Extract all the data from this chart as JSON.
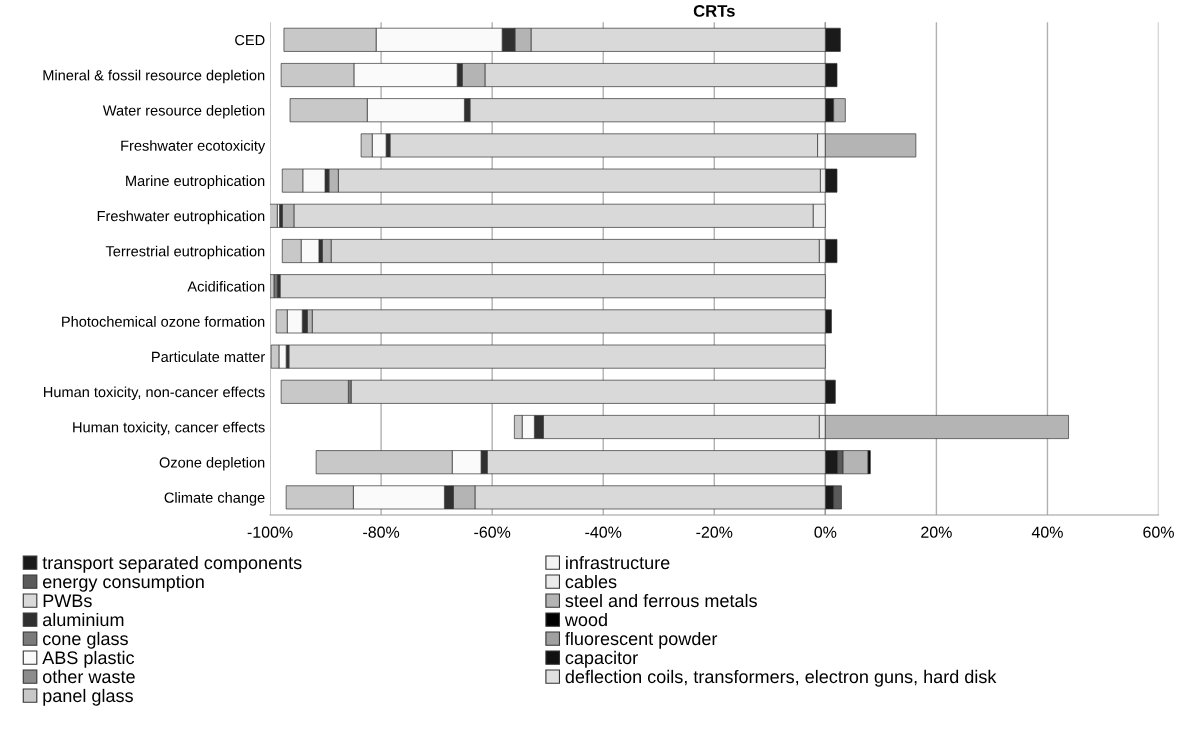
{
  "chart_data": {
    "type": "bar",
    "title": "CRTs",
    "orientation": "horizontal",
    "stacked": true,
    "categories": [
      "CED",
      "Mineral & fossil resource depletion",
      "Water resource depletion",
      "Freshwater ecotoxicity",
      "Marine eutrophication",
      "Freshwater eutrophication",
      "Terrestrial eutrophication",
      "Acidification",
      "Photochemical ozone formation",
      "Particulate matter",
      "Human toxicity, non-cancer effects",
      "Human toxicity, cancer effects",
      "Ozone depletion",
      "Climate change"
    ],
    "xlim": [
      -100,
      60
    ],
    "xticks": [
      {
        "value": -100,
        "label": "-100%"
      },
      {
        "value": -80,
        "label": "-80%"
      },
      {
        "value": -60,
        "label": "-60%"
      },
      {
        "value": -40,
        "label": "-40%"
      },
      {
        "value": -20,
        "label": "-20%"
      },
      {
        "value": 0,
        "label": "0%"
      },
      {
        "value": 20,
        "label": "20%"
      },
      {
        "value": 40,
        "label": "40%"
      },
      {
        "value": 60,
        "label": "60%"
      }
    ],
    "grid": "x",
    "legend": "bottom",
    "series": [
      {
        "name": "transport separated components",
        "color": "#1a1a1a",
        "values": [
          2.7,
          2.1,
          1.5,
          null,
          2.1,
          null,
          2.1,
          null,
          1.1,
          null,
          1.8,
          null,
          2.2,
          1.5
        ]
      },
      {
        "name": "infrastructure",
        "color": "#f4f4f4",
        "values": [
          null,
          null,
          null,
          null,
          null,
          null,
          null,
          null,
          null,
          null,
          null,
          null,
          null,
          null
        ]
      },
      {
        "name": "energy consumption",
        "color": "#5a5a5a",
        "values": [
          null,
          null,
          null,
          null,
          null,
          null,
          null,
          null,
          null,
          null,
          null,
          null,
          1.0,
          1.4
        ]
      },
      {
        "name": "cables",
        "color": "#ebebeb",
        "values": [
          null,
          null,
          null,
          -1.4,
          -0.9,
          -2.2,
          -1.1,
          null,
          null,
          null,
          null,
          -1.1,
          null,
          null
        ]
      },
      {
        "name": "PWBs",
        "color": "#d9d9d9",
        "values": [
          -53.0,
          -61.3,
          -64.0,
          -77.0,
          -86.8,
          -93.5,
          -87.9,
          -98.2,
          -92.4,
          -96.6,
          -85.4,
          -49.7,
          -60.9,
          -63.1
        ]
      },
      {
        "name": "steel and ferrous metals",
        "color": "#b4b4b4",
        "values": [
          -2.9,
          -4.1,
          2.1,
          16.3,
          -1.7,
          -2.1,
          -1.6,
          null,
          -0.9,
          null,
          null,
          43.8,
          4.5,
          -3.9
        ]
      },
      {
        "name": "aluminium",
        "color": "#303030",
        "values": [
          -2.3,
          -0.9,
          -1.0,
          -0.7,
          -0.7,
          -0.5,
          -0.6,
          -0.5,
          -0.9,
          -0.5,
          null,
          -1.6,
          -1.1,
          -1.6
        ]
      },
      {
        "name": "wood",
        "color": "#000000",
        "values": [
          null,
          null,
          null,
          null,
          null,
          null,
          null,
          null,
          null,
          null,
          null,
          null,
          0.4,
          null
        ]
      },
      {
        "name": "cone glass",
        "color": "#7a7a7a",
        "values": [
          null,
          null,
          null,
          null,
          null,
          null,
          null,
          -0.6,
          null,
          null,
          -0.5,
          null,
          null,
          null
        ]
      },
      {
        "name": "fluorescent powder",
        "color": "#a0a0a0",
        "values": [
          null,
          null,
          null,
          null,
          null,
          null,
          null,
          null,
          null,
          null,
          null,
          null,
          null,
          null
        ]
      },
      {
        "name": "ABS plastic",
        "color": "#fafafa",
        "values": [
          -22.7,
          -18.6,
          -17.5,
          -2.5,
          -4.0,
          -0.4,
          -3.2,
          null,
          -2.7,
          -1.3,
          null,
          -2.2,
          -5.2,
          -16.4
        ]
      },
      {
        "name": "capacitor",
        "color": "#111111",
        "values": [
          null,
          null,
          null,
          null,
          null,
          null,
          null,
          null,
          null,
          null,
          null,
          null,
          null,
          null
        ]
      },
      {
        "name": "other waste",
        "color": "#8c8c8c",
        "values": [
          null,
          null,
          null,
          null,
          null,
          null,
          null,
          null,
          null,
          null,
          null,
          null,
          null,
          null
        ]
      },
      {
        "name": "deflection coils, transformers, electron guns, hard disk",
        "color": "#e0e0e0",
        "values": [
          null,
          null,
          null,
          null,
          null,
          null,
          null,
          null,
          null,
          null,
          null,
          null,
          null,
          null
        ]
      },
      {
        "name": "panel glass",
        "color": "#c8c8c8",
        "values": [
          -16.6,
          -13.1,
          -13.9,
          -2.0,
          -3.7,
          -1.5,
          -3.4,
          -0.7,
          -2.0,
          -1.4,
          -12.1,
          -1.4,
          -24.5,
          -12.1
        ]
      }
    ]
  }
}
